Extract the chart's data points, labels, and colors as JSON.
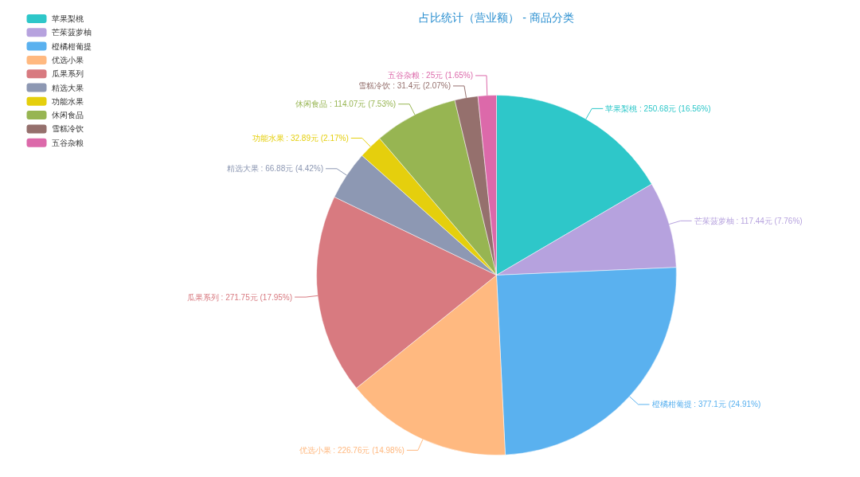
{
  "chart_data": {
    "type": "pie",
    "title": "占比统计（营业额） - 商品分类",
    "categories": [
      "苹果梨桃",
      "芒茱菠萝柚",
      "橙橘柑葡提",
      "优选小果",
      "瓜果系列",
      "精选大果",
      "功能水果",
      "休闲食品",
      "雪糕冷饮",
      "五谷杂粮"
    ],
    "values": [
      250.68,
      117.44,
      377.1,
      226.76,
      271.75,
      66.88,
      32.89,
      114.07,
      31.4,
      25
    ],
    "value_labels": [
      "苹果梨桃 : 250.68元 (16.56%)",
      "芒茱菠萝柚 : 117.44元 (7.76%)",
      "橙橘柑葡提 : 377.1元 (24.91%)",
      "优选小果 : 226.76元 (14.98%)",
      "瓜果系列 : 271.75元 (17.95%)",
      "精选大果 : 66.88元 (4.42%)",
      "功能水果 : 32.89元 (2.17%)",
      "休闲食品 : 114.07元 (7.53%)",
      "雪糕冷饮 : 31.4元 (2.07%)",
      "五谷杂粮 : 25元 (1.65%)"
    ],
    "colors": [
      "#2ec7c9",
      "#b6a2de",
      "#5ab1ef",
      "#ffb980",
      "#d87a80",
      "#8d98b3",
      "#e5cf0d",
      "#97b552",
      "#95706d",
      "#dc69aa"
    ],
    "legend": "top left"
  }
}
